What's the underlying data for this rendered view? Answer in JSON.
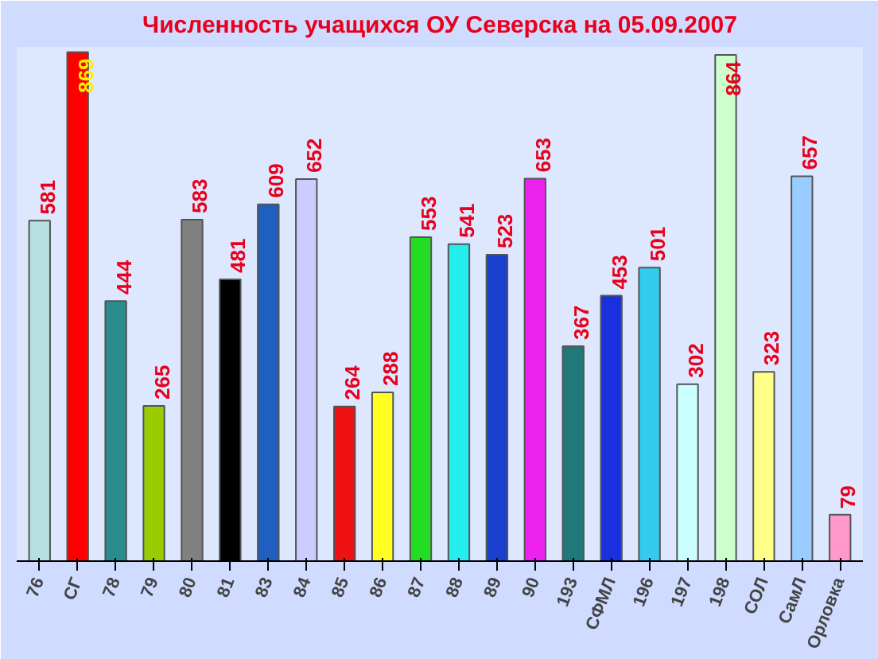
{
  "chart_data": {
    "type": "bar",
    "title": "Численность учащихся ОУ Северска на 05.09.2007",
    "categories": [
      "76",
      "СГ",
      "78",
      "79",
      "80",
      "81",
      "83",
      "84",
      "85",
      "86",
      "87",
      "88",
      "89",
      "90",
      "193",
      "СФМЛ",
      "196",
      "197",
      "198",
      "СОЛ",
      "СамЛ",
      "Орловка"
    ],
    "values": [
      581,
      869,
      444,
      265,
      583,
      481,
      609,
      652,
      264,
      288,
      553,
      541,
      523,
      653,
      367,
      453,
      501,
      302,
      864,
      323,
      657,
      79
    ],
    "colors": [
      "#b8e0e0",
      "#ff0000",
      "#2a8c8c",
      "#99cc00",
      "#808080",
      "#000000",
      "#1f5fbf",
      "#ccccff",
      "#ee1111",
      "#ffff22",
      "#22dd22",
      "#22eeee",
      "#1a3fcc",
      "#ee22ee",
      "#207878",
      "#1a2fdd",
      "#33ccee",
      "#ccffff",
      "#ccffcc",
      "#ffff88",
      "#99ccff",
      "#ff99cc"
    ],
    "data_labels": true
  }
}
